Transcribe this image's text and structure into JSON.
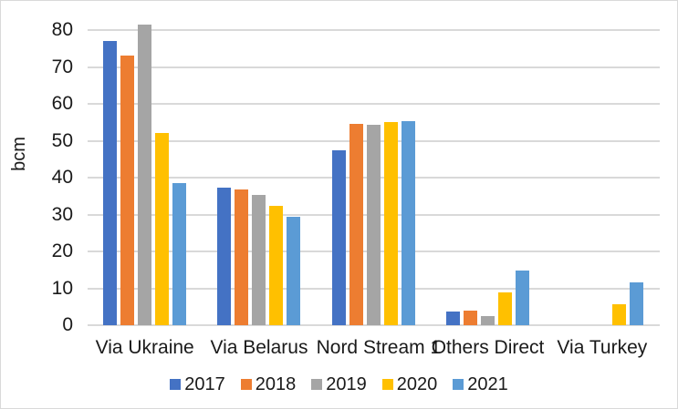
{
  "chart_data": {
    "type": "bar",
    "ylabel": "bcm",
    "ylim": [
      0,
      80
    ],
    "yticks": [
      0,
      10,
      20,
      30,
      40,
      50,
      60,
      70,
      80
    ],
    "grid": true,
    "legend_position": "bottom",
    "categories": [
      "Via Ukraine",
      "Via Belarus",
      "Nord Stream 1",
      "Others Direct",
      "Via Turkey"
    ],
    "series": [
      {
        "name": "2017",
        "color": "#4472C4",
        "values": [
          77,
          37.3,
          47.3,
          3.7,
          0
        ]
      },
      {
        "name": "2018",
        "color": "#ED7D31",
        "values": [
          73,
          36.8,
          54.6,
          4,
          0
        ]
      },
      {
        "name": "2019",
        "color": "#A5A5A5",
        "values": [
          81.5,
          35.3,
          54.2,
          2.5,
          0
        ]
      },
      {
        "name": "2020",
        "color": "#FFC000",
        "values": [
          52,
          32.4,
          55,
          9,
          5.6
        ]
      },
      {
        "name": "2021",
        "color": "#5B9BD5",
        "values": [
          38.5,
          29.3,
          55.2,
          14.7,
          11.6
        ]
      }
    ]
  }
}
